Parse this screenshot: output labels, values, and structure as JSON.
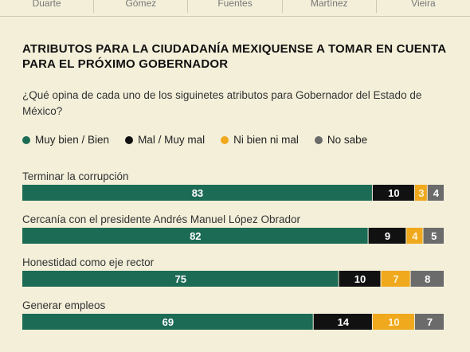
{
  "header": {
    "candidates": [
      "Duarte",
      "Gómez",
      "Fuentes",
      "Martínez",
      "Vieira"
    ]
  },
  "chart_data": {
    "type": "bar",
    "orientation": "horizontal",
    "stacked": true,
    "title": "ATRIBUTOS PARA LA CIUDADANÍA MEXIQUENSE A TOMAR EN CUENTA PARA EL PRÓXIMO GOBERNADOR",
    "subtitle": "¿Qué opina de cada uno de los siguinetes atributos para Gobernador del Estado de México?",
    "categories": [
      "Terminar la corrupción",
      "Cercanía con el presidente Andrés Manuel López Obrador",
      "Honestidad como eje rector",
      "Generar empleos"
    ],
    "series": [
      {
        "name": "Muy bien / Bien",
        "color": "#1c6b55",
        "values": [
          83,
          82,
          75,
          69
        ]
      },
      {
        "name": "Mal / Muy mal",
        "color": "#111111",
        "values": [
          10,
          9,
          10,
          14
        ]
      },
      {
        "name": "Ni bien ni mal",
        "color": "#f0a81c",
        "values": [
          3,
          4,
          7,
          10
        ]
      },
      {
        "name": "No sabe",
        "color": "#6b6b6b",
        "values": [
          4,
          5,
          8,
          7
        ]
      }
    ],
    "xlim": [
      0,
      100
    ],
    "legend_position": "top",
    "grid": false
  }
}
